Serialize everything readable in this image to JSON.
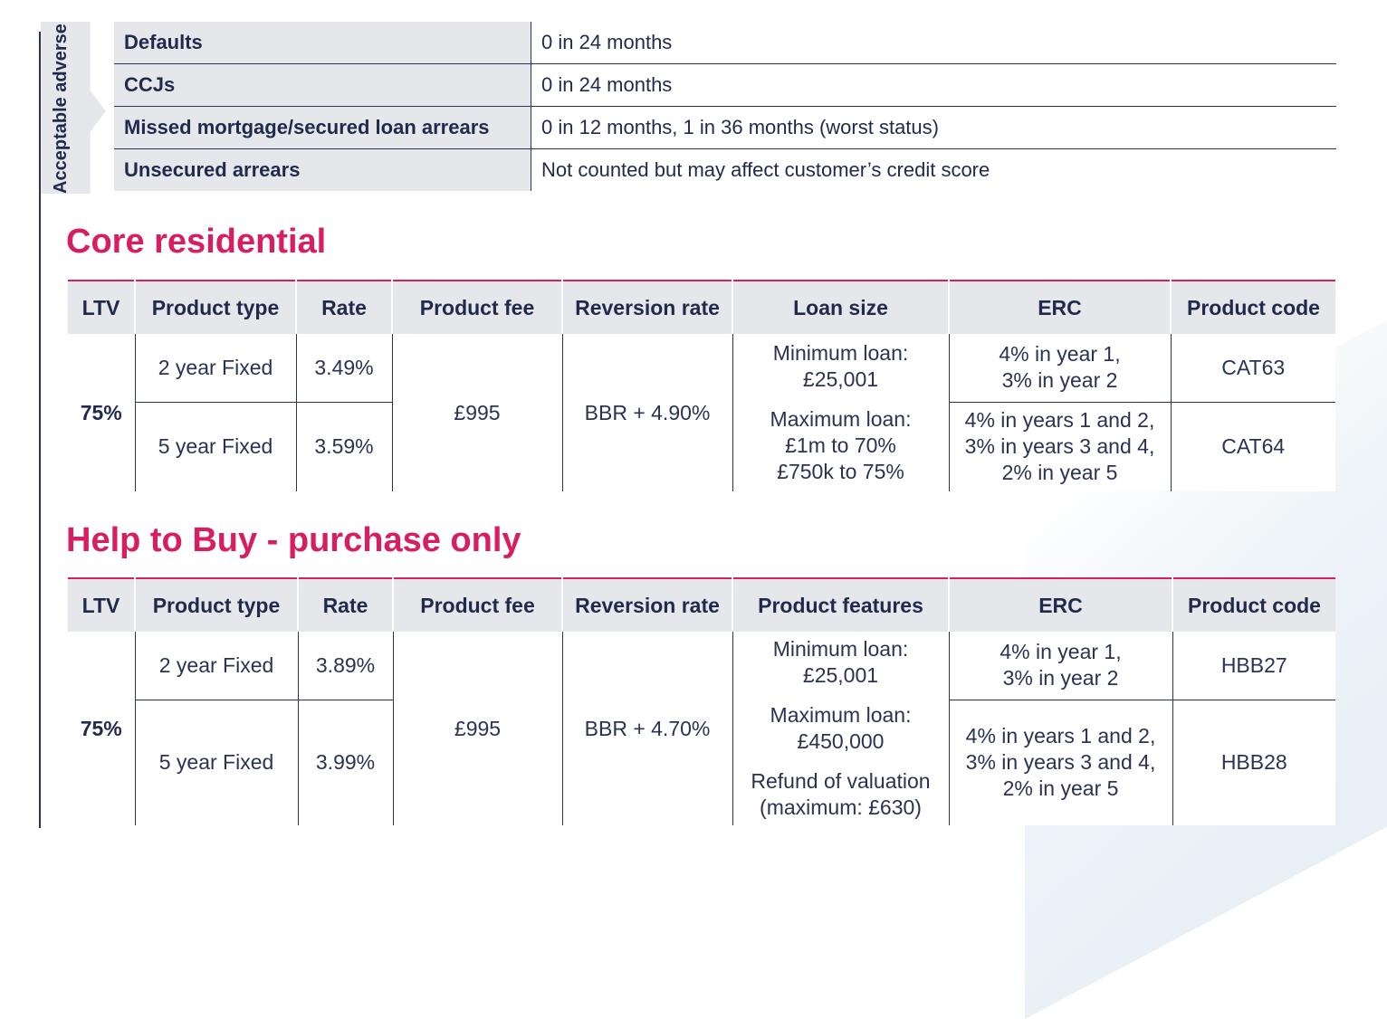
{
  "adverse": {
    "label": "Acceptable adverse",
    "rows": [
      {
        "key": "Defaults",
        "value": "0 in 24 months"
      },
      {
        "key": "CCJs",
        "value": "0 in 24 months"
      },
      {
        "key": "Missed mortgage/secured loan arrears",
        "value": "0 in 12 months, 1 in 36 months (worst status)"
      },
      {
        "key": "Unsecured arrears",
        "value": "Not counted but may affect customer’s credit score"
      }
    ]
  },
  "core": {
    "title": "Core residential",
    "headers": [
      "LTV",
      "Product type",
      "Rate",
      "Product fee",
      "Reversion rate",
      "Loan size",
      "ERC",
      "Product code"
    ],
    "ltv": "75%",
    "fee": "£995",
    "reversion": "BBR + 4.90%",
    "features": [
      "Minimum loan:",
      "£25,001",
      "Maximum loan:",
      "£1m to 70%",
      "£750k to 75%"
    ],
    "rows": [
      {
        "type": "2 year Fixed",
        "rate": "3.49%",
        "erc": [
          "4% in year 1,",
          "3% in year 2"
        ],
        "code": "CAT63"
      },
      {
        "type": "5 year Fixed",
        "rate": "3.59%",
        "erc": [
          "4% in years 1 and 2,",
          "3% in years 3 and 4,",
          "2% in year 5"
        ],
        "code": "CAT64"
      }
    ]
  },
  "htb": {
    "title": "Help to Buy - purchase only",
    "headers": [
      "LTV",
      "Product type",
      "Rate",
      "Product fee",
      "Reversion rate",
      "Product features",
      "ERC",
      "Product code"
    ],
    "ltv": "75%",
    "fee": "£995",
    "reversion": "BBR + 4.70%",
    "features": [
      "Minimum loan:",
      "£25,001",
      "Maximum loan:",
      "£450,000",
      "Refund of valuation",
      "(maximum: £630)"
    ],
    "rows": [
      {
        "type": "2 year Fixed",
        "rate": "3.89%",
        "erc": [
          "4% in year 1,",
          "3% in year 2"
        ],
        "code": "HBB27"
      },
      {
        "type": "5 year Fixed",
        "rate": "3.99%",
        "erc": [
          "4% in years 1 and 2,",
          "3% in years 3 and 4,",
          "2% in year 5"
        ],
        "code": "HBB28"
      }
    ]
  }
}
